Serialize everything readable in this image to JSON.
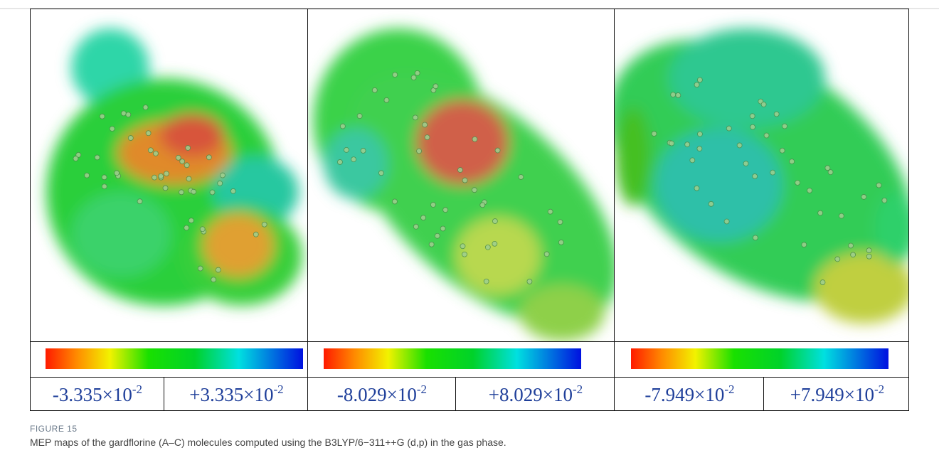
{
  "figure": {
    "panels": [
      {
        "min": {
          "base": "-3.335×10",
          "exp": "-2"
        },
        "max": {
          "base": "+3.335×10",
          "exp": "-2"
        }
      },
      {
        "min": {
          "base": "-8.029×10",
          "exp": "-2"
        },
        "max": {
          "base": "+8.029×10",
          "exp": "-2"
        }
      },
      {
        "min": {
          "base": "-7.949×10",
          "exp": "-2"
        },
        "max": {
          "base": "+7.949×10",
          "exp": "-2"
        }
      }
    ]
  },
  "caption": {
    "label": "FIGURE 15",
    "text": "MEP maps of the gardflorine (A–C) molecules computed using the B3LYP/6−311++G (d,p) in the gas phase."
  }
}
